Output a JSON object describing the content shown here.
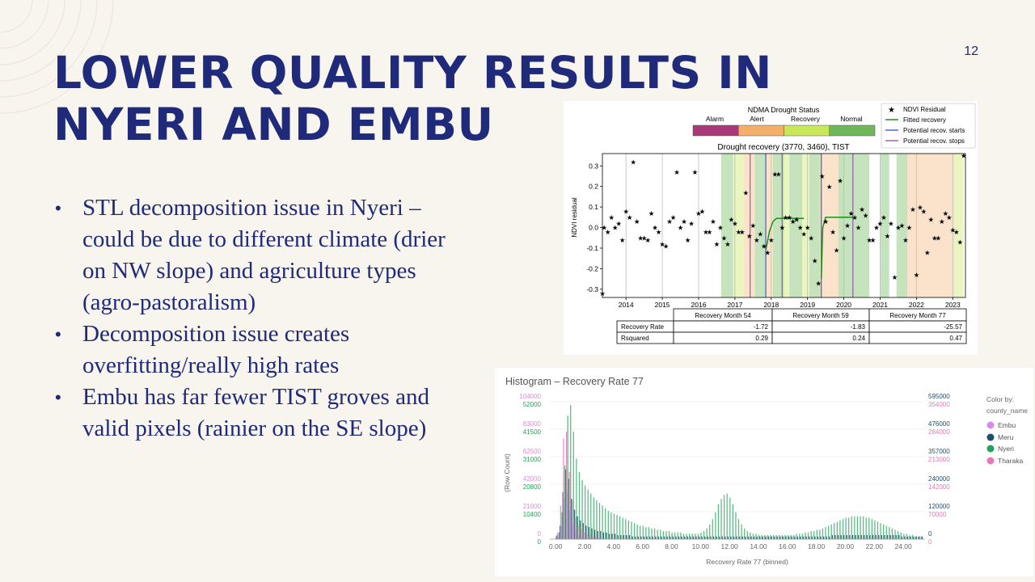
{
  "slide": {
    "title_line1": "LOWER QUALITY RESULTS IN",
    "title_line2": "NYERI AND EMBU",
    "page_number": "12",
    "bullets": [
      {
        "text": "STL decomposition issue in Nyeri – could be due to different climate (drier on NW slope) and agriculture types (agro-pastoralism)"
      },
      {
        "text": "Decomposition issue creates overfitting/really high rates"
      },
      {
        "text": "Embu has far fewer TIST groves and valid pixels (rainier on the SE slope)"
      }
    ],
    "bullet_glyph": "•"
  },
  "recovery_figure": {
    "status_bar": {
      "title": "NDMA Drought Status",
      "labels": [
        "Alarm",
        "Alert",
        "Recovery",
        "Normal"
      ],
      "colors": [
        "#a83a7a",
        "#f4b06a",
        "#c8e85a",
        "#6fb85a"
      ]
    },
    "legend": [
      "NDVI Residual",
      "Fitted recovery",
      "Potential recov. starts",
      "Potential recov. stops"
    ],
    "table": {
      "headers": [
        "",
        "Recovery Month 54",
        "Recovery Month 59",
        "Recovery Month 77"
      ],
      "rows": [
        [
          "Recovery Rate",
          "-1.72",
          "-1.83",
          "-25.57"
        ],
        [
          "Rsquared",
          "0.29",
          "0.24",
          "0.47"
        ]
      ]
    }
  },
  "chart_data": [
    {
      "type": "scatter",
      "title": "Drought recovery (3770, 3460), TIST",
      "xlabel": "",
      "ylabel": "NDVI residual",
      "x_ticks": [
        "2014",
        "2015",
        "2016",
        "2017",
        "2018",
        "2019",
        "2020",
        "2021",
        "2022",
        "2023"
      ],
      "y_ticks": [
        "0.3",
        "0.2",
        "0.1",
        "0.0",
        "-0.1",
        "-0.2",
        "-0.3"
      ],
      "xlim": [
        2013.35,
        2023.35
      ],
      "ylim": [
        -0.34,
        0.36
      ],
      "shaded_periods": [
        {
          "start": 2016.62,
          "end": 2016.95,
          "status": "Normal"
        },
        {
          "start": 2016.95,
          "end": 2017.25,
          "status": "Recovery"
        },
        {
          "start": 2017.25,
          "end": 2017.55,
          "status": "Alert"
        },
        {
          "start": 2017.55,
          "end": 2017.85,
          "status": "Normal"
        },
        {
          "start": 2017.85,
          "end": 2018.05,
          "status": "Alert"
        },
        {
          "start": 2018.05,
          "end": 2018.35,
          "status": "Normal"
        },
        {
          "start": 2018.35,
          "end": 2018.5,
          "status": "Recovery"
        },
        {
          "start": 2018.5,
          "end": 2018.85,
          "status": "Normal"
        },
        {
          "start": 2018.85,
          "end": 2019.05,
          "status": "Recovery"
        },
        {
          "start": 2019.05,
          "end": 2019.35,
          "status": "Normal"
        },
        {
          "start": 2019.35,
          "end": 2019.85,
          "status": "Alert"
        },
        {
          "start": 2019.85,
          "end": 2020.7,
          "status": "Normal"
        },
        {
          "start": 2021.0,
          "end": 2021.25,
          "status": "Normal"
        },
        {
          "start": 2021.45,
          "end": 2021.75,
          "status": "Normal"
        },
        {
          "start": 2021.75,
          "end": 2023.05,
          "status": "Alert"
        },
        {
          "start": 2023.05,
          "end": 2023.3,
          "status": "Recovery"
        }
      ],
      "vertical_lines": {
        "recov_starts": [
          2017.85,
          2019.38
        ],
        "recov_stops": [
          2017.42,
          2018.3,
          2020.25
        ]
      },
      "fitted_recovery": [
        {
          "x": [
            2017.85,
            2017.95,
            2018.05,
            2018.15,
            2018.3,
            2018.9
          ],
          "y": [
            -0.11,
            -0.02,
            0.03,
            0.045,
            0.045,
            0.045
          ]
        },
        {
          "x": [
            2019.38,
            2019.42,
            2019.5,
            2020.25
          ],
          "y": [
            -0.25,
            0.0,
            0.05,
            0.05
          ]
        }
      ],
      "series": [
        {
          "name": "NDVI Residual",
          "x": [
            2013.35,
            2013.4,
            2013.5,
            2013.6,
            2013.7,
            2013.8,
            2013.9,
            2014.0,
            2014.1,
            2014.2,
            2014.3,
            2014.4,
            2014.5,
            2014.6,
            2014.7,
            2014.8,
            2014.9,
            2015.0,
            2015.1,
            2015.2,
            2015.3,
            2015.4,
            2015.5,
            2015.6,
            2015.7,
            2015.8,
            2015.9,
            2016.0,
            2016.1,
            2016.2,
            2016.3,
            2016.4,
            2016.5,
            2016.6,
            2016.7,
            2016.8,
            2016.9,
            2017.0,
            2017.1,
            2017.2,
            2017.3,
            2017.4,
            2017.5,
            2017.6,
            2017.7,
            2017.8,
            2017.9,
            2018.0,
            2018.1,
            2018.2,
            2018.3,
            2018.4,
            2018.5,
            2018.6,
            2018.7,
            2018.8,
            2018.9,
            2019.0,
            2019.1,
            2019.2,
            2019.3,
            2019.4,
            2019.5,
            2019.6,
            2019.7,
            2019.8,
            2019.9,
            2020.0,
            2020.1,
            2020.2,
            2020.3,
            2020.4,
            2020.5,
            2020.6,
            2020.7,
            2020.8,
            2020.9,
            2021.0,
            2021.1,
            2021.2,
            2021.3,
            2021.4,
            2021.5,
            2021.6,
            2021.7,
            2021.8,
            2021.9,
            2022.0,
            2022.1,
            2022.2,
            2022.3,
            2022.4,
            2022.5,
            2022.6,
            2022.7,
            2022.8,
            2022.9,
            2023.0,
            2023.1,
            2023.2,
            2023.3
          ],
          "y": [
            -0.32,
            0.0,
            -0.02,
            0.05,
            0.0,
            0.02,
            -0.06,
            0.08,
            0.05,
            0.32,
            0.03,
            -0.05,
            -0.05,
            -0.06,
            0.07,
            0.0,
            -0.02,
            -0.08,
            -0.09,
            0.03,
            0.05,
            0.27,
            0.0,
            0.03,
            -0.06,
            0.02,
            0.27,
            0.07,
            0.08,
            -0.02,
            -0.02,
            0.03,
            -0.08,
            0.0,
            -0.05,
            -0.08,
            0.04,
            0.02,
            -0.02,
            -0.02,
            0.17,
            -0.04,
            0.01,
            -0.06,
            -0.03,
            -0.09,
            -0.12,
            -0.06,
            0.26,
            0.26,
            0.0,
            0.05,
            0.05,
            0.03,
            0.04,
            0.0,
            -0.03,
            0.0,
            -0.05,
            -0.16,
            -0.27,
            0.25,
            0.03,
            0.2,
            -0.02,
            -0.11,
            0.23,
            -0.05,
            0.01,
            0.07,
            0.05,
            0.0,
            0.09,
            0.06,
            -0.06,
            -0.06,
            0.0,
            0.02,
            0.05,
            -0.04,
            0.02,
            -0.24,
            0.0,
            0.01,
            -0.06,
            0.0,
            0.09,
            -0.23,
            0.1,
            0.08,
            -0.12,
            0.04,
            -0.05,
            -0.05,
            0.03,
            0.07,
            0.05,
            -0.01,
            -0.02,
            -0.07,
            0.35
          ]
        }
      ]
    },
    {
      "type": "bar",
      "title": "Histogram – Recovery Rate 77",
      "xlabel": "Recovery Rate 77 (binned)",
      "ylabel": "(Row Count)",
      "x_ticks": [
        "0.00",
        "2.00",
        "4.00",
        "6.00",
        "8.00",
        "10.00",
        "12.00",
        "14.00",
        "16.00",
        "18.00",
        "20.00",
        "22.00",
        "24.00"
      ],
      "xlim": [
        -0.4,
        25.5
      ],
      "y_ticks_left_green": [
        "52000",
        "41500",
        "31000",
        "20800",
        "10400",
        "0"
      ],
      "y_ticks_left_pink": [
        "104000",
        "83000",
        "62500",
        "42000",
        "21000",
        "0"
      ],
      "y_ticks_right_teal": [
        "595000",
        "476000",
        "357000",
        "240000",
        "120000",
        "0"
      ],
      "y_ticks_right_pink": [
        "354000",
        "284000",
        "213000",
        "142000",
        "70000",
        "0"
      ],
      "legend_title": "Color by:",
      "legend_subtitle": "county_name",
      "series": [
        {
          "name": "Embu",
          "color": "#d58fe8"
        },
        {
          "name": "Meru",
          "color": "#1f4e6e"
        },
        {
          "name": "Nyeri",
          "color": "#21a35a"
        },
        {
          "name": "Tharaka",
          "color": "#e879b8"
        }
      ],
      "bin_width": 0.2,
      "bins_start": 0.0,
      "nyeri_fraction_of_max": [
        0.02,
        0.05,
        0.2,
        0.55,
        0.92,
        1.0,
        0.8,
        0.6,
        0.5,
        0.44,
        0.4,
        0.37,
        0.34,
        0.31,
        0.29,
        0.27,
        0.25,
        0.23,
        0.21,
        0.2,
        0.19,
        0.18,
        0.17,
        0.16,
        0.15,
        0.14,
        0.13,
        0.12,
        0.11,
        0.1,
        0.1,
        0.09,
        0.09,
        0.08,
        0.08,
        0.07,
        0.07,
        0.06,
        0.06,
        0.06,
        0.05,
        0.05,
        0.05,
        0.05,
        0.04,
        0.04,
        0.04,
        0.04,
        0.04,
        0.04,
        0.05,
        0.06,
        0.08,
        0.11,
        0.15,
        0.2,
        0.26,
        0.3,
        0.33,
        0.34,
        0.31,
        0.26,
        0.2,
        0.15,
        0.11,
        0.08,
        0.06,
        0.05,
        0.04,
        0.04,
        0.03,
        0.03,
        0.03,
        0.03,
        0.03,
        0.03,
        0.03,
        0.03,
        0.03,
        0.03,
        0.03,
        0.03,
        0.03,
        0.04,
        0.04,
        0.04,
        0.05,
        0.05,
        0.06,
        0.06,
        0.07,
        0.07,
        0.08,
        0.09,
        0.1,
        0.11,
        0.12,
        0.13,
        0.14,
        0.15,
        0.16,
        0.16,
        0.17,
        0.17,
        0.17,
        0.17,
        0.17,
        0.16,
        0.16,
        0.15,
        0.14,
        0.13,
        0.12,
        0.11,
        0.1,
        0.09,
        0.08,
        0.07,
        0.06,
        0.05,
        0.04,
        0.04,
        0.03,
        0.03,
        0.02,
        0.02,
        0.02
      ],
      "meru_fraction_of_max": [
        0.03,
        0.1,
        0.35,
        0.52,
        0.45,
        0.3,
        0.22,
        0.17,
        0.14,
        0.12,
        0.1,
        0.09,
        0.08,
        0.07,
        0.06,
        0.06,
        0.05,
        0.05,
        0.04,
        0.04,
        0.04,
        0.03,
        0.03,
        0.03,
        0.03,
        0.03,
        0.02,
        0.02,
        0.02,
        0.02,
        0.02,
        0.02,
        0.02,
        0.02,
        0.02,
        0.02,
        0.02,
        0.02,
        0.02,
        0.02,
        0.02,
        0.02,
        0.02,
        0.02,
        0.02,
        0.02,
        0.02,
        0.02,
        0.02,
        0.02,
        0.02,
        0.02,
        0.02,
        0.02,
        0.02,
        0.02,
        0.02,
        0.02,
        0.02,
        0.02,
        0.02,
        0.02,
        0.02,
        0.02,
        0.02,
        0.02,
        0.02,
        0.02,
        0.02,
        0.02,
        0.02,
        0.02,
        0.02,
        0.02,
        0.02,
        0.02,
        0.02,
        0.02,
        0.02,
        0.02,
        0.02,
        0.02,
        0.02,
        0.02,
        0.02,
        0.02,
        0.02,
        0.02,
        0.02,
        0.02,
        0.02,
        0.02,
        0.02,
        0.02,
        0.02,
        0.03,
        0.03,
        0.03,
        0.03,
        0.03,
        0.03,
        0.03,
        0.03,
        0.03,
        0.03,
        0.03,
        0.03,
        0.03,
        0.03,
        0.03,
        0.03,
        0.03,
        0.03,
        0.03,
        0.03,
        0.03,
        0.03,
        0.03,
        0.03,
        0.02,
        0.02,
        0.02,
        0.02,
        0.02,
        0.02,
        0.02,
        0.02
      ],
      "tharaka_fraction_of_max": [
        0.05,
        0.25,
        0.75,
        0.8,
        0.5,
        0.28,
        0.16,
        0.1,
        0.07,
        0.05,
        0.04,
        0.03,
        0.02,
        0.02,
        0.01
      ],
      "embu_fraction_of_max": [
        0.02,
        0.1,
        0.3,
        0.35,
        0.22,
        0.12,
        0.06,
        0.03,
        0.02,
        0.01
      ]
    }
  ]
}
